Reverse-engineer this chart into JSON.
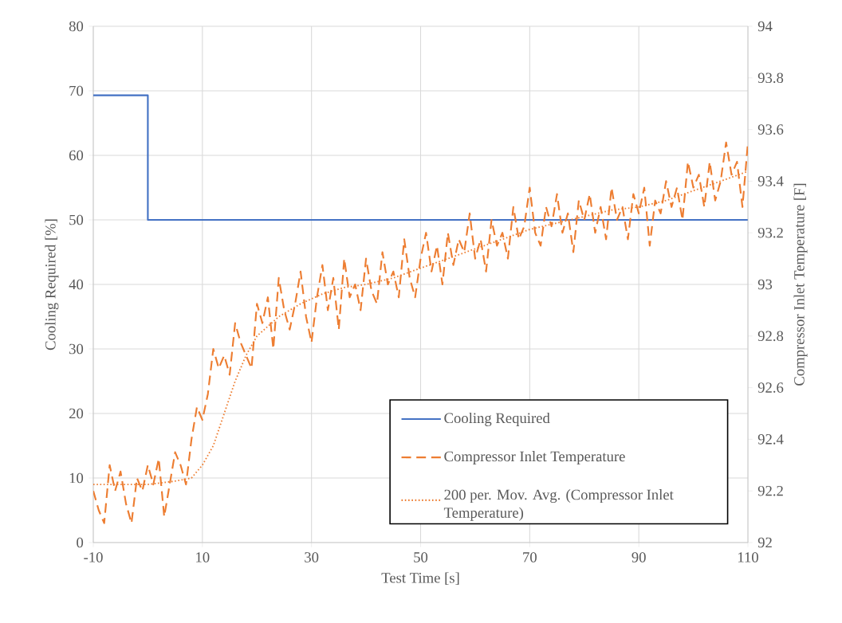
{
  "chart_data": {
    "type": "line",
    "xlabel": "Test Time [s]",
    "ylabel": "Cooling Required [%]",
    "y2label": "Compressor Inlet Temperature [F]",
    "xlim": [
      -10,
      110
    ],
    "xticks": [
      -10,
      10,
      30,
      50,
      70,
      90,
      110
    ],
    "ylim": [
      0,
      80
    ],
    "yticks": [
      0,
      10,
      20,
      30,
      40,
      50,
      60,
      70,
      80
    ],
    "y2lim": [
      92,
      94
    ],
    "y2ticks": [
      92,
      92.2,
      92.4,
      92.6,
      92.8,
      93,
      93.2,
      93.4,
      93.6,
      93.8,
      94
    ],
    "grid": true,
    "legend": "bottom right",
    "marker": "none",
    "series": [
      {
        "name": "Cooling Required",
        "type": "step",
        "color": "#4472c4",
        "line_style": "solid",
        "x": [
          -10,
          0,
          110
        ],
        "values": [
          69.3,
          50,
          50
        ]
      },
      {
        "name": "Compressor Inlet Temperature",
        "type": "line",
        "axis": "y2",
        "color": "#ed7d31",
        "line_style": "dashed",
        "x": [
          -10,
          -9,
          -8,
          -7,
          -6,
          -5,
          -4,
          -3,
          -2,
          -1,
          0,
          1,
          2,
          3,
          4,
          5,
          6,
          7,
          8,
          9,
          10,
          11,
          12,
          13,
          14,
          15,
          16,
          17,
          18,
          19,
          20,
          21,
          22,
          23,
          24,
          25,
          26,
          27,
          28,
          29,
          30,
          31,
          32,
          33,
          34,
          35,
          36,
          37,
          38,
          39,
          40,
          41,
          42,
          43,
          44,
          45,
          46,
          47,
          48,
          49,
          50,
          51,
          52,
          53,
          54,
          55,
          56,
          57,
          58,
          59,
          60,
          61,
          62,
          63,
          64,
          65,
          66,
          67,
          68,
          69,
          70,
          71,
          72,
          73,
          74,
          75,
          76,
          77,
          78,
          79,
          80,
          81,
          82,
          83,
          84,
          85,
          86,
          87,
          88,
          89,
          90,
          91,
          92,
          93,
          94,
          95,
          96,
          97,
          98,
          99,
          100,
          101,
          102,
          103,
          104,
          105,
          106,
          107,
          108,
          109,
          110
        ],
        "values": [
          92.2,
          92.125,
          92.075,
          92.3,
          92.2,
          92.275,
          92.15,
          92.075,
          92.25,
          92.2,
          92.3,
          92.225,
          92.325,
          92.1,
          92.225,
          92.35,
          92.3,
          92.225,
          92.4,
          92.525,
          92.475,
          92.575,
          92.75,
          92.675,
          92.725,
          92.65,
          92.85,
          92.775,
          92.725,
          92.675,
          92.925,
          92.85,
          92.95,
          92.75,
          93.025,
          92.9,
          92.825,
          92.925,
          93.05,
          92.875,
          92.775,
          92.95,
          93.075,
          92.9,
          93.025,
          92.825,
          93.1,
          92.95,
          93.0,
          92.9,
          93.1,
          92.975,
          92.925,
          93.125,
          93.0,
          93.05,
          92.95,
          93.175,
          93.025,
          92.95,
          93.1,
          93.2,
          93.05,
          93.15,
          93.0,
          93.2,
          93.075,
          93.175,
          93.125,
          93.275,
          93.1,
          93.175,
          93.05,
          93.25,
          93.15,
          93.2,
          93.1,
          93.3,
          93.175,
          93.225,
          93.375,
          93.2,
          93.15,
          93.3,
          93.225,
          93.35,
          93.2,
          93.275,
          93.125,
          93.325,
          93.25,
          93.35,
          93.2,
          93.3,
          93.175,
          93.375,
          93.25,
          93.3,
          93.175,
          93.35,
          93.275,
          93.375,
          93.15,
          93.325,
          93.275,
          93.4,
          93.3,
          93.375,
          93.25,
          93.475,
          93.375,
          93.425,
          93.3,
          93.475,
          93.325,
          93.4,
          93.55,
          93.425,
          93.475,
          93.3,
          93.55
        ]
      },
      {
        "name": "200 per. Mov. Avg. (Compressor Inlet Temperature)",
        "type": "line",
        "axis": "y2",
        "color": "#ed7d31",
        "line_style": "dotted",
        "x": [
          -10,
          0,
          5,
          8,
          10,
          12,
          14,
          16,
          18,
          20,
          24,
          28,
          32,
          36,
          40,
          45,
          50,
          55,
          60,
          65,
          70,
          75,
          80,
          85,
          90,
          95,
          100,
          105,
          110
        ],
        "values": [
          92.225,
          92.225,
          92.238,
          92.25,
          92.3,
          92.375,
          92.5,
          92.625,
          92.725,
          92.8,
          92.875,
          92.925,
          92.963,
          92.988,
          93.0,
          93.025,
          93.063,
          93.1,
          93.138,
          93.175,
          93.213,
          93.238,
          93.263,
          93.288,
          93.3,
          93.325,
          93.363,
          93.4,
          93.438
        ]
      }
    ]
  }
}
